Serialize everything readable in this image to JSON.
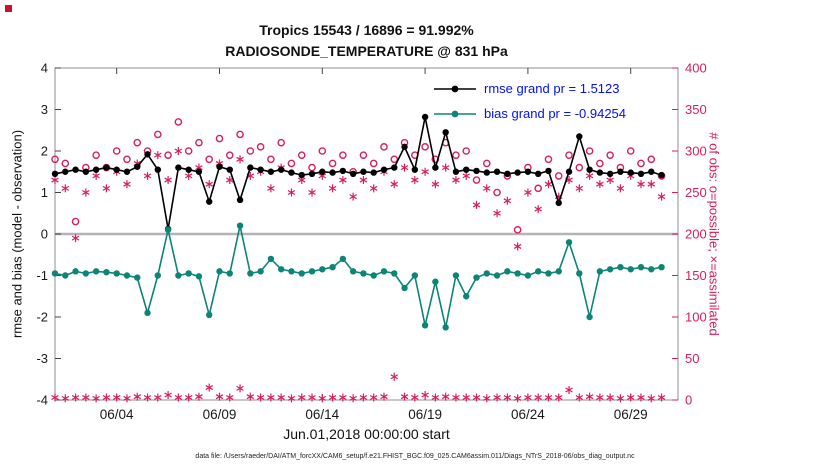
{
  "colors": {
    "rmse": "#000000",
    "bias": "#0c8577",
    "obs": "#d81e5b",
    "legend_text": "#0011ee",
    "zero_line": "#b4b4b4",
    "corner": "#cc1133",
    "tick_text": "#1a1a1a"
  },
  "title": {
    "line1": "Tropics 15543 / 16896 = 91.992%",
    "line2": "RADIOSONDE_TEMPERATURE @ 831 hPa"
  },
  "legend": [
    {
      "label": "rmse grand pr = 1.5123"
    },
    {
      "label": "bias grand pr = -0.94254"
    }
  ],
  "axis_labels": {
    "left": "rmse and bias (model - observation)",
    "right": "# of obs: o=possible; ×=assimilated",
    "x": "Jun.01,2018 00:00:00 start"
  },
  "caption": "data file: /Users/raeder/DAI/ATM_forcXX/CAM6_setup/f.e21.FHIST_BGC.f09_025.CAM6assim.011/Diags_NTrS_2018-06/obs_diag_output.nc",
  "chart_data": {
    "type": "line",
    "title": [
      "Tropics 15543 / 16896 = 91.992%",
      "RADIOSONDE_TEMPERATURE @ 831 hPa"
    ],
    "xlabel": "Jun.01,2018 00:00:00 start",
    "ylabel_left": "rmse and bias (model - observation)",
    "ylabel_right": "# of obs: o=possible; ×=assimilated",
    "xlim": [
      1,
      31.3
    ],
    "ylim_left": [
      -4,
      4
    ],
    "ylim_right": [
      0,
      400
    ],
    "grid": false,
    "legend_position": "top-right-inside",
    "rmse_grand_pr": 1.5123,
    "bias_grand_pr": -0.94254,
    "x_ticks": [
      {
        "x": 4,
        "label": "06/04"
      },
      {
        "x": 9,
        "label": "06/09"
      },
      {
        "x": 14,
        "label": "06/14"
      },
      {
        "x": 19,
        "label": "06/19"
      },
      {
        "x": 24,
        "label": "06/24"
      },
      {
        "x": 29,
        "label": "06/29"
      }
    ],
    "y_ticks_left": [
      -4,
      -3,
      -2,
      -1,
      0,
      1,
      2,
      3,
      4
    ],
    "y_ticks_right": [
      0,
      50,
      100,
      150,
      200,
      250,
      300,
      350,
      400
    ],
    "zero_line": {
      "axis": "left",
      "value": 0,
      "color": "#b4b4b4"
    },
    "x": [
      1,
      1.5,
      2,
      2.5,
      3,
      3.5,
      4,
      4.5,
      5,
      5.5,
      6,
      6.5,
      7,
      7.5,
      8,
      8.5,
      9,
      9.5,
      10,
      10.5,
      11,
      11.5,
      12,
      12.5,
      13,
      13.5,
      14,
      14.5,
      15,
      15.5,
      16,
      16.5,
      17,
      17.5,
      18,
      18.5,
      19,
      19.5,
      20,
      20.5,
      21,
      21.5,
      22,
      22.5,
      23,
      23.5,
      24,
      24.5,
      25,
      25.5,
      26,
      26.5,
      27,
      27.5,
      28,
      28.5,
      29,
      29.5,
      30,
      30.5
    ],
    "series": [
      {
        "name": "possible_obs",
        "marker": "o",
        "axis": "right",
        "type": "scatter-circle",
        "color": "#d81e5b",
        "values": [
          290,
          285,
          215,
          280,
          295,
          280,
          300,
          290,
          310,
          300,
          320,
          295,
          335,
          300,
          310,
          290,
          315,
          295,
          320,
          300,
          305,
          290,
          310,
          285,
          295,
          280,
          300,
          285,
          295,
          275,
          295,
          285,
          305,
          290,
          310,
          295,
          305,
          290,
          310,
          295,
          300,
          265,
          285,
          250,
          270,
          205,
          280,
          255,
          290,
          270,
          295,
          280,
          300,
          285,
          295,
          280,
          300,
          285,
          290,
          270
        ]
      },
      {
        "name": "assimilated_obs",
        "marker": "*",
        "axis": "right",
        "type": "scatter-asterisk",
        "color": "#d81e5b",
        "values": [
          265,
          255,
          195,
          250,
          270,
          255,
          275,
          260,
          285,
          270,
          295,
          265,
          300,
          270,
          280,
          260,
          285,
          265,
          290,
          270,
          275,
          255,
          280,
          250,
          265,
          250,
          270,
          255,
          265,
          245,
          265,
          255,
          275,
          260,
          280,
          265,
          275,
          260,
          280,
          265,
          270,
          235,
          255,
          225,
          240,
          185,
          250,
          230,
          260,
          245,
          265,
          255,
          270,
          260,
          265,
          255,
          270,
          260,
          260,
          245
        ]
      },
      {
        "name": "bottom_asterisk_band",
        "marker": "*",
        "axis": "right",
        "type": "scatter-asterisk",
        "color": "#d81e5b",
        "values": [
          3,
          2,
          3,
          3,
          2,
          3,
          3,
          2,
          4,
          3,
          3,
          6,
          3,
          3,
          4,
          15,
          4,
          3,
          14,
          4,
          3,
          3,
          3,
          2,
          3,
          3,
          2,
          3,
          3,
          2,
          3,
          3,
          4,
          28,
          4,
          3,
          6,
          3,
          4,
          3,
          3,
          3,
          2,
          3,
          3,
          2,
          3,
          3,
          3,
          3,
          12,
          3,
          4,
          3,
          3,
          2,
          3,
          3,
          2,
          3
        ]
      },
      {
        "name": "rmse",
        "marker": "dot",
        "axis": "left",
        "type": "line-dot",
        "color": "#000000",
        "values": [
          1.45,
          1.5,
          1.55,
          1.5,
          1.55,
          1.6,
          1.55,
          1.5,
          1.62,
          1.92,
          1.55,
          0.12,
          1.6,
          1.55,
          1.5,
          0.78,
          1.62,
          1.55,
          0.82,
          1.6,
          1.55,
          1.5,
          1.55,
          1.48,
          1.42,
          1.45,
          1.5,
          1.48,
          1.52,
          1.45,
          1.5,
          1.48,
          1.55,
          1.6,
          2.1,
          1.55,
          2.82,
          1.6,
          2.45,
          1.5,
          1.55,
          1.52,
          1.48,
          1.5,
          1.45,
          1.48,
          1.5,
          1.45,
          1.52,
          0.75,
          1.5,
          2.35,
          1.55,
          1.48,
          1.45,
          1.5,
          1.48,
          1.45,
          1.5,
          1.42
        ]
      },
      {
        "name": "bias",
        "marker": "dot",
        "axis": "left",
        "type": "line-dot",
        "color": "#0c8577",
        "values": [
          -0.95,
          -1.0,
          -0.9,
          -0.95,
          -0.9,
          -0.92,
          -0.95,
          -1.0,
          -1.05,
          -1.9,
          -1.0,
          0.1,
          -1.0,
          -0.95,
          -1.02,
          -1.95,
          -0.9,
          -0.95,
          0.2,
          -0.95,
          -0.9,
          -0.6,
          -0.85,
          -0.9,
          -0.95,
          -0.9,
          -0.85,
          -0.8,
          -0.6,
          -0.9,
          -0.95,
          -1.0,
          -0.9,
          -0.95,
          -1.3,
          -1.0,
          -2.2,
          -1.15,
          -2.25,
          -1.0,
          -1.5,
          -1.05,
          -0.95,
          -1.0,
          -0.9,
          -0.95,
          -1.0,
          -0.9,
          -0.95,
          -0.9,
          -0.2,
          -0.95,
          -2.0,
          -0.9,
          -0.85,
          -0.8,
          -0.85,
          -0.8,
          -0.85,
          -0.8
        ]
      }
    ]
  }
}
